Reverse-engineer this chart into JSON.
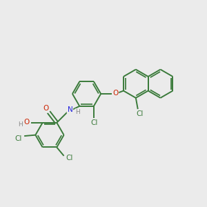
{
  "bg_color": "#ebebeb",
  "bond_color": "#3a7a3a",
  "atom_colors": {
    "Cl": "#3a7a3a",
    "O": "#cc2200",
    "N": "#2222dd",
    "H_gray": "#888888",
    "C": "#3a7a3a"
  },
  "bond_lw": 1.4,
  "font_size_atom": 7.5,
  "font_size_small": 6.5
}
